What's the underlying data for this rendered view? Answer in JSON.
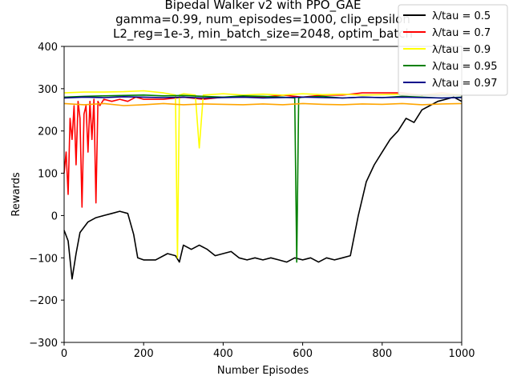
{
  "chart_data": {
    "type": "line",
    "title_lines": [
      "Bipedal Walker v2 with PPO_GAE",
      "gamma=0.99, num_episodes=1000, clip_epsilon",
      "L2_reg=1e-3, min_batch_size=2048, optim_batch"
    ],
    "xlabel": "Number Episodes",
    "ylabel": "Rewards",
    "xlim": [
      0,
      1000
    ],
    "ylim": [
      -300,
      400
    ],
    "xticks": [
      0,
      200,
      400,
      600,
      800,
      1000
    ],
    "yticks": [
      -300,
      -200,
      -100,
      0,
      100,
      200,
      300,
      400
    ],
    "grid": false,
    "legend_position": "top-right",
    "series": [
      {
        "name": "λ/tau = 0.5",
        "color": "#000000",
        "x": [
          0,
          10,
          20,
          30,
          40,
          60,
          80,
          100,
          120,
          140,
          160,
          175,
          185,
          200,
          230,
          260,
          280,
          290,
          300,
          320,
          340,
          360,
          380,
          400,
          420,
          440,
          460,
          480,
          500,
          520,
          540,
          560,
          580,
          600,
          620,
          640,
          660,
          680,
          700,
          720,
          740,
          760,
          780,
          800,
          820,
          840,
          860,
          880,
          900,
          920,
          940,
          960,
          980,
          1000
        ],
        "y": [
          -35,
          -60,
          -150,
          -90,
          -40,
          -15,
          -5,
          0,
          5,
          10,
          5,
          -45,
          -100,
          -105,
          -105,
          -90,
          -95,
          -110,
          -70,
          -80,
          -70,
          -80,
          -95,
          -90,
          -85,
          -100,
          -105,
          -100,
          -105,
          -100,
          -105,
          -110,
          -100,
          -105,
          -100,
          -110,
          -100,
          -105,
          -100,
          -95,
          0,
          80,
          120,
          150,
          180,
          200,
          230,
          220,
          250,
          260,
          270,
          275,
          280,
          270
        ]
      },
      {
        "name": "λ/tau = 0.7",
        "color": "#ff0000",
        "x": [
          0,
          5,
          10,
          15,
          20,
          25,
          30,
          35,
          40,
          45,
          50,
          55,
          60,
          65,
          70,
          75,
          80,
          85,
          90,
          100,
          120,
          140,
          160,
          180,
          200,
          250,
          300,
          350,
          400,
          450,
          500,
          550,
          600,
          650,
          700,
          750,
          800,
          850,
          900,
          950,
          1000
        ],
        "y": [
          100,
          150,
          50,
          230,
          180,
          260,
          120,
          270,
          230,
          20,
          240,
          260,
          150,
          270,
          180,
          275,
          30,
          270,
          260,
          275,
          270,
          275,
          270,
          280,
          275,
          275,
          280,
          275,
          280,
          280,
          280,
          285,
          280,
          285,
          285,
          290,
          290,
          290,
          285,
          290,
          285
        ]
      },
      {
        "name": "λ/tau = 0.9",
        "color": "#ffff00",
        "x": [
          0,
          50,
          100,
          150,
          200,
          250,
          280,
          285,
          290,
          300,
          330,
          340,
          350,
          400,
          450,
          500,
          550,
          600,
          650,
          700,
          750,
          800,
          850,
          900,
          950,
          1000
        ],
        "y": [
          290,
          292,
          292,
          293,
          295,
          290,
          285,
          -100,
          285,
          288,
          285,
          160,
          285,
          288,
          285,
          287,
          285,
          288,
          286,
          287,
          285,
          286,
          287,
          285,
          288,
          286
        ]
      },
      {
        "name": "λ/tau = 0.95",
        "color": "#008000",
        "x": [
          0,
          50,
          100,
          150,
          200,
          250,
          300,
          350,
          400,
          450,
          500,
          550,
          580,
          585,
          590,
          600,
          650,
          700,
          750,
          800,
          850,
          900,
          950,
          1000
        ],
        "y": [
          280,
          282,
          283,
          284,
          285,
          283,
          284,
          282,
          280,
          283,
          282,
          280,
          278,
          -110,
          278,
          280,
          282,
          278,
          280,
          279,
          282,
          280,
          278,
          280
        ]
      },
      {
        "name": "λ/tau = 0.97",
        "color": "#00008b",
        "x": [
          0,
          50,
          100,
          150,
          200,
          250,
          300,
          350,
          400,
          450,
          500,
          550,
          600,
          650,
          700,
          750,
          800,
          850,
          900,
          950,
          1000
        ],
        "y": [
          278,
          280,
          279,
          281,
          280,
          279,
          280,
          278,
          279,
          280,
          278,
          279,
          280,
          279,
          278,
          280,
          279,
          280,
          279,
          278,
          279
        ]
      },
      {
        "name": "",
        "color": "#ffa500",
        "x": [
          0,
          50,
          100,
          150,
          200,
          250,
          300,
          350,
          400,
          450,
          500,
          550,
          600,
          650,
          700,
          750,
          800,
          850,
          900,
          950,
          1000
        ],
        "y": [
          265,
          262,
          265,
          260,
          262,
          265,
          262,
          264,
          263,
          262,
          264,
          262,
          265,
          263,
          262,
          264,
          263,
          265,
          262,
          264,
          265
        ]
      }
    ]
  }
}
